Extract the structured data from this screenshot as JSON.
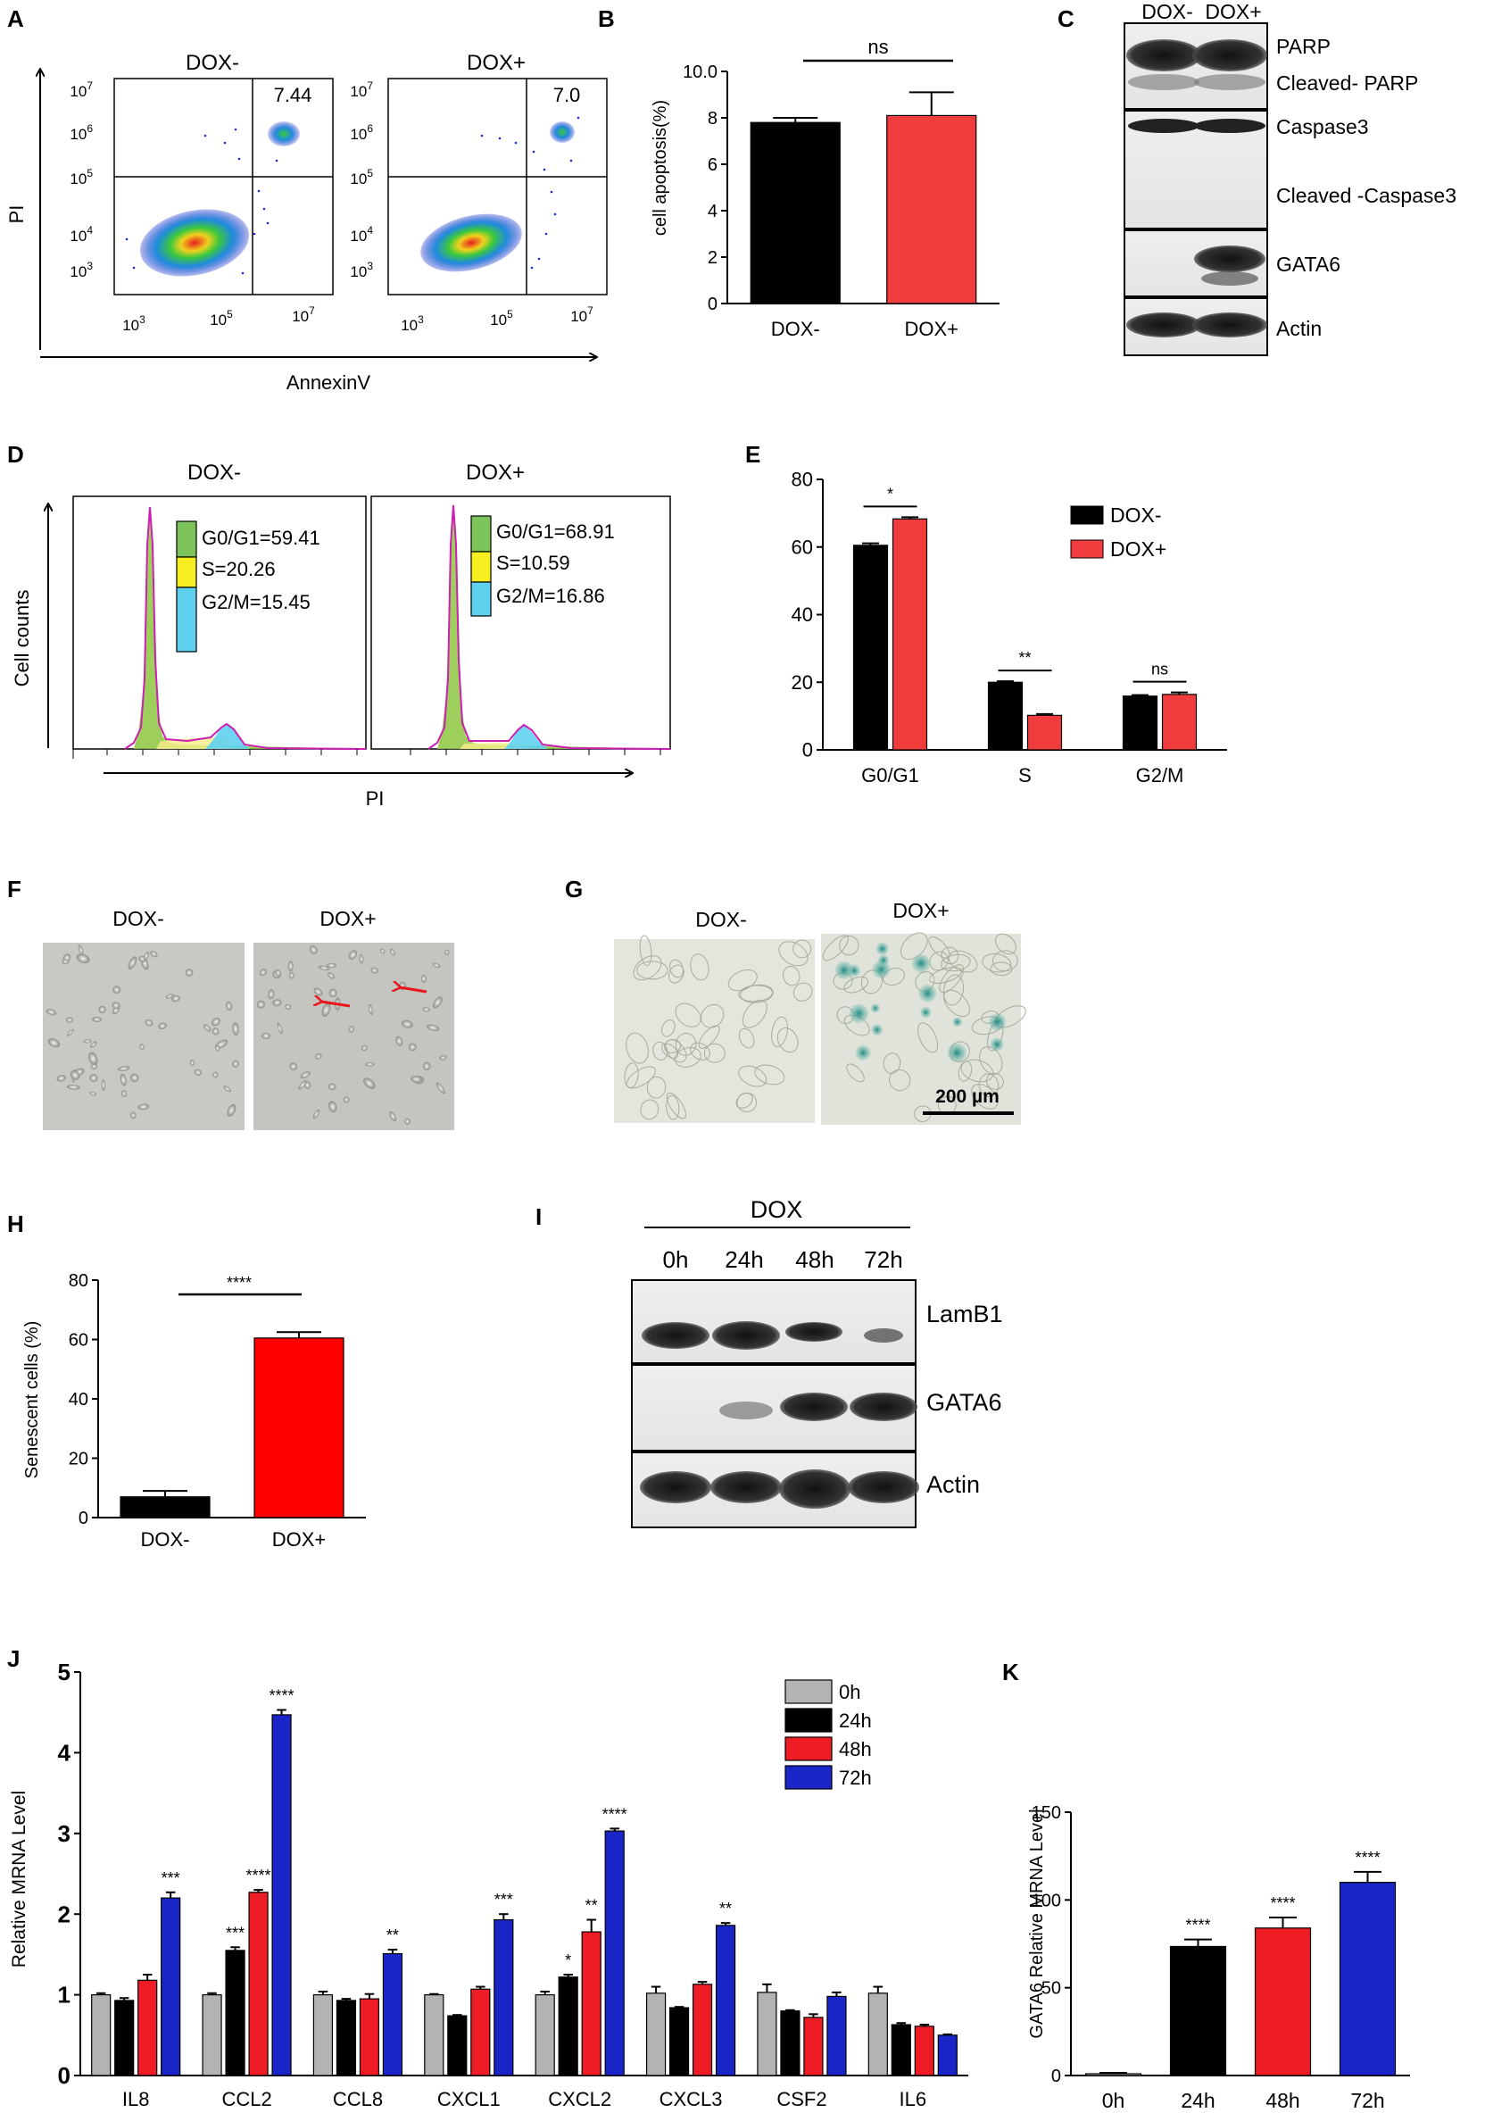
{
  "panels": {
    "A": {
      "letter": "A",
      "left_title": "DOX-",
      "right_title": "DOX+",
      "left_quadrant_value": "7.44",
      "right_quadrant_value": "7.0",
      "ylabel": "PI",
      "xlabel": "AnnexinV",
      "tick_base": "10",
      "x_tick_exponents": [
        "3",
        "5",
        "7"
      ],
      "y_tick_exponents": [
        "7",
        "6",
        "5",
        "4",
        "3"
      ]
    },
    "B": {
      "letter": "B",
      "ns_label": "ns"
    },
    "C": {
      "letter": "C",
      "lanes": [
        "DOX-",
        "DOX+"
      ],
      "labels": [
        "PARP",
        "Cleaved- PARP",
        "Caspase3",
        "Cleaved -Caspase3",
        "GATA6",
        "Actin"
      ]
    },
    "D": {
      "letter": "D",
      "left_title": "DOX-",
      "right_title": "DOX+",
      "left_stats": [
        "G0/G1=59.41",
        "S=20.26",
        "G2/M=15.45"
      ],
      "right_stats": [
        "G0/G1=68.91",
        "S=10.59",
        "G2/M=16.86"
      ],
      "stat_colors": [
        "#7cc35a",
        "#f6ee1e",
        "#5fd0ee"
      ],
      "ylabel": "Cell counts",
      "xlabel": "PI"
    },
    "E": {
      "letter": "E",
      "sig_labels": [
        "*",
        "**",
        "ns"
      ]
    },
    "F": {
      "letter": "F",
      "left_title": "DOX-",
      "right_title": "DOX+"
    },
    "G": {
      "letter": "G",
      "left_title": "DOX-",
      "right_title": "DOX+",
      "scale_bar": "200 µm"
    },
    "H": {
      "letter": "H",
      "sig_label": "****"
    },
    "I": {
      "letter": "I",
      "treatment": "DOX",
      "timepoints": [
        "0h",
        "24h",
        "48h",
        "72h"
      ],
      "labels": [
        "LamB1",
        "GATA6",
        "Actin"
      ]
    },
    "J": {
      "letter": "J"
    },
    "K": {
      "letter": "K"
    }
  },
  "chart_data": [
    {
      "panel": "B",
      "type": "bar",
      "categories": [
        "DOX-",
        "DOX+"
      ],
      "values": [
        7.8,
        8.1
      ],
      "errors": [
        0.2,
        1.0
      ],
      "colors": [
        "#000000",
        "#f03c3c"
      ],
      "ylabel": "cell apoptosis(%)",
      "ylim": [
        0,
        10
      ],
      "yticks": [
        "0",
        "2",
        "4",
        "6",
        "8",
        "10.0"
      ],
      "annotations": [
        {
          "text": "ns",
          "between": [
            "DOX-",
            "DOX+"
          ]
        }
      ]
    },
    {
      "panel": "E",
      "type": "bar",
      "categories": [
        "G0/G1",
        "S",
        "G2/M"
      ],
      "series": [
        {
          "name": "DOX-",
          "values": [
            60.5,
            20.0,
            15.9
          ],
          "errors": [
            0.6,
            0.3,
            0.3
          ],
          "color": "#000000"
        },
        {
          "name": "DOX+",
          "values": [
            68.3,
            10.2,
            16.4
          ],
          "errors": [
            0.5,
            0.4,
            0.6
          ],
          "color": "#f03c3c"
        }
      ],
      "ylim": [
        0,
        80
      ],
      "yticks": [
        "0",
        "20",
        "40",
        "60",
        "80"
      ],
      "legend": "top-right",
      "annotations": [
        "*",
        "**",
        "ns"
      ]
    },
    {
      "panel": "H",
      "type": "bar",
      "categories": [
        "DOX-",
        "DOX+"
      ],
      "values": [
        7.0,
        60.5
      ],
      "errors": [
        2.0,
        2.0
      ],
      "colors": [
        "#000000",
        "#ff0000"
      ],
      "ylabel": "Senescent cells (%)",
      "ylim": [
        0,
        80
      ],
      "yticks": [
        "0",
        "20",
        "40",
        "60",
        "80"
      ],
      "annotations": [
        "****"
      ]
    },
    {
      "panel": "J",
      "type": "bar",
      "categories": [
        "IL8",
        "CCL2",
        "CCL8",
        "CXCL1",
        "CXCL2",
        "CXCL3",
        "CSF2",
        "IL6"
      ],
      "series": [
        {
          "name": "0h",
          "color": "#b3b3b3",
          "values": [
            1.0,
            1.0,
            1.0,
            1.0,
            1.0,
            1.02,
            1.03,
            1.02
          ],
          "errors": [
            0.02,
            0.02,
            0.04,
            0.01,
            0.04,
            0.08,
            0.1,
            0.08
          ]
        },
        {
          "name": "24h",
          "color": "#000000",
          "values": [
            0.93,
            1.55,
            0.93,
            0.74,
            1.22,
            0.84,
            0.8,
            0.63
          ],
          "errors": [
            0.03,
            0.04,
            0.02,
            0.01,
            0.03,
            0.01,
            0.01,
            0.02
          ]
        },
        {
          "name": "48h",
          "color": "#ee1c24",
          "values": [
            1.18,
            2.27,
            0.95,
            1.07,
            1.78,
            1.13,
            0.72,
            0.61
          ],
          "errors": [
            0.07,
            0.03,
            0.06,
            0.03,
            0.15,
            0.03,
            0.04,
            0.02
          ]
        },
        {
          "name": "72h",
          "color": "#1a25c8",
          "values": [
            2.2,
            4.47,
            1.51,
            1.93,
            3.03,
            1.86,
            0.98,
            0.5
          ],
          "errors": [
            0.07,
            0.06,
            0.05,
            0.07,
            0.03,
            0.03,
            0.05,
            0.01
          ]
        }
      ],
      "ylabel": "Relative MRNA Level",
      "ylim": [
        0,
        5
      ],
      "yticks": [
        "0",
        "1",
        "2",
        "3",
        "4",
        "5"
      ],
      "legend": "top-right",
      "annotations": [
        {
          "category": "IL8",
          "series": "72h",
          "text": "***"
        },
        {
          "category": "CCL2",
          "series": "24h",
          "text": "***"
        },
        {
          "category": "CCL2",
          "series": "48h",
          "text": "****"
        },
        {
          "category": "CCL2",
          "series": "72h",
          "text": "****"
        },
        {
          "category": "CCL8",
          "series": "72h",
          "text": "**"
        },
        {
          "category": "CXCL1",
          "series": "72h",
          "text": "***"
        },
        {
          "category": "CXCL2",
          "series": "24h",
          "text": "*"
        },
        {
          "category": "CXCL2",
          "series": "48h",
          "text": "**"
        },
        {
          "category": "CXCL2",
          "series": "72h",
          "text": "****"
        },
        {
          "category": "CXCL3",
          "series": "72h",
          "text": "**"
        }
      ]
    },
    {
      "panel": "K",
      "type": "bar",
      "categories": [
        "0h",
        "24h",
        "48h",
        "72h"
      ],
      "values": [
        1.0,
        73.5,
        84.0,
        110.0
      ],
      "errors": [
        0.5,
        4.0,
        6.0,
        6.0
      ],
      "colors": [
        "#b3b3b3",
        "#000000",
        "#ee1c24",
        "#1a25c8"
      ],
      "ylabel": "GATA6 Relative MRNA Level",
      "ylim": [
        0,
        150
      ],
      "yticks": [
        "0",
        "50",
        "100",
        "150"
      ],
      "annotations": [
        "",
        "****",
        "****",
        "****"
      ]
    }
  ]
}
